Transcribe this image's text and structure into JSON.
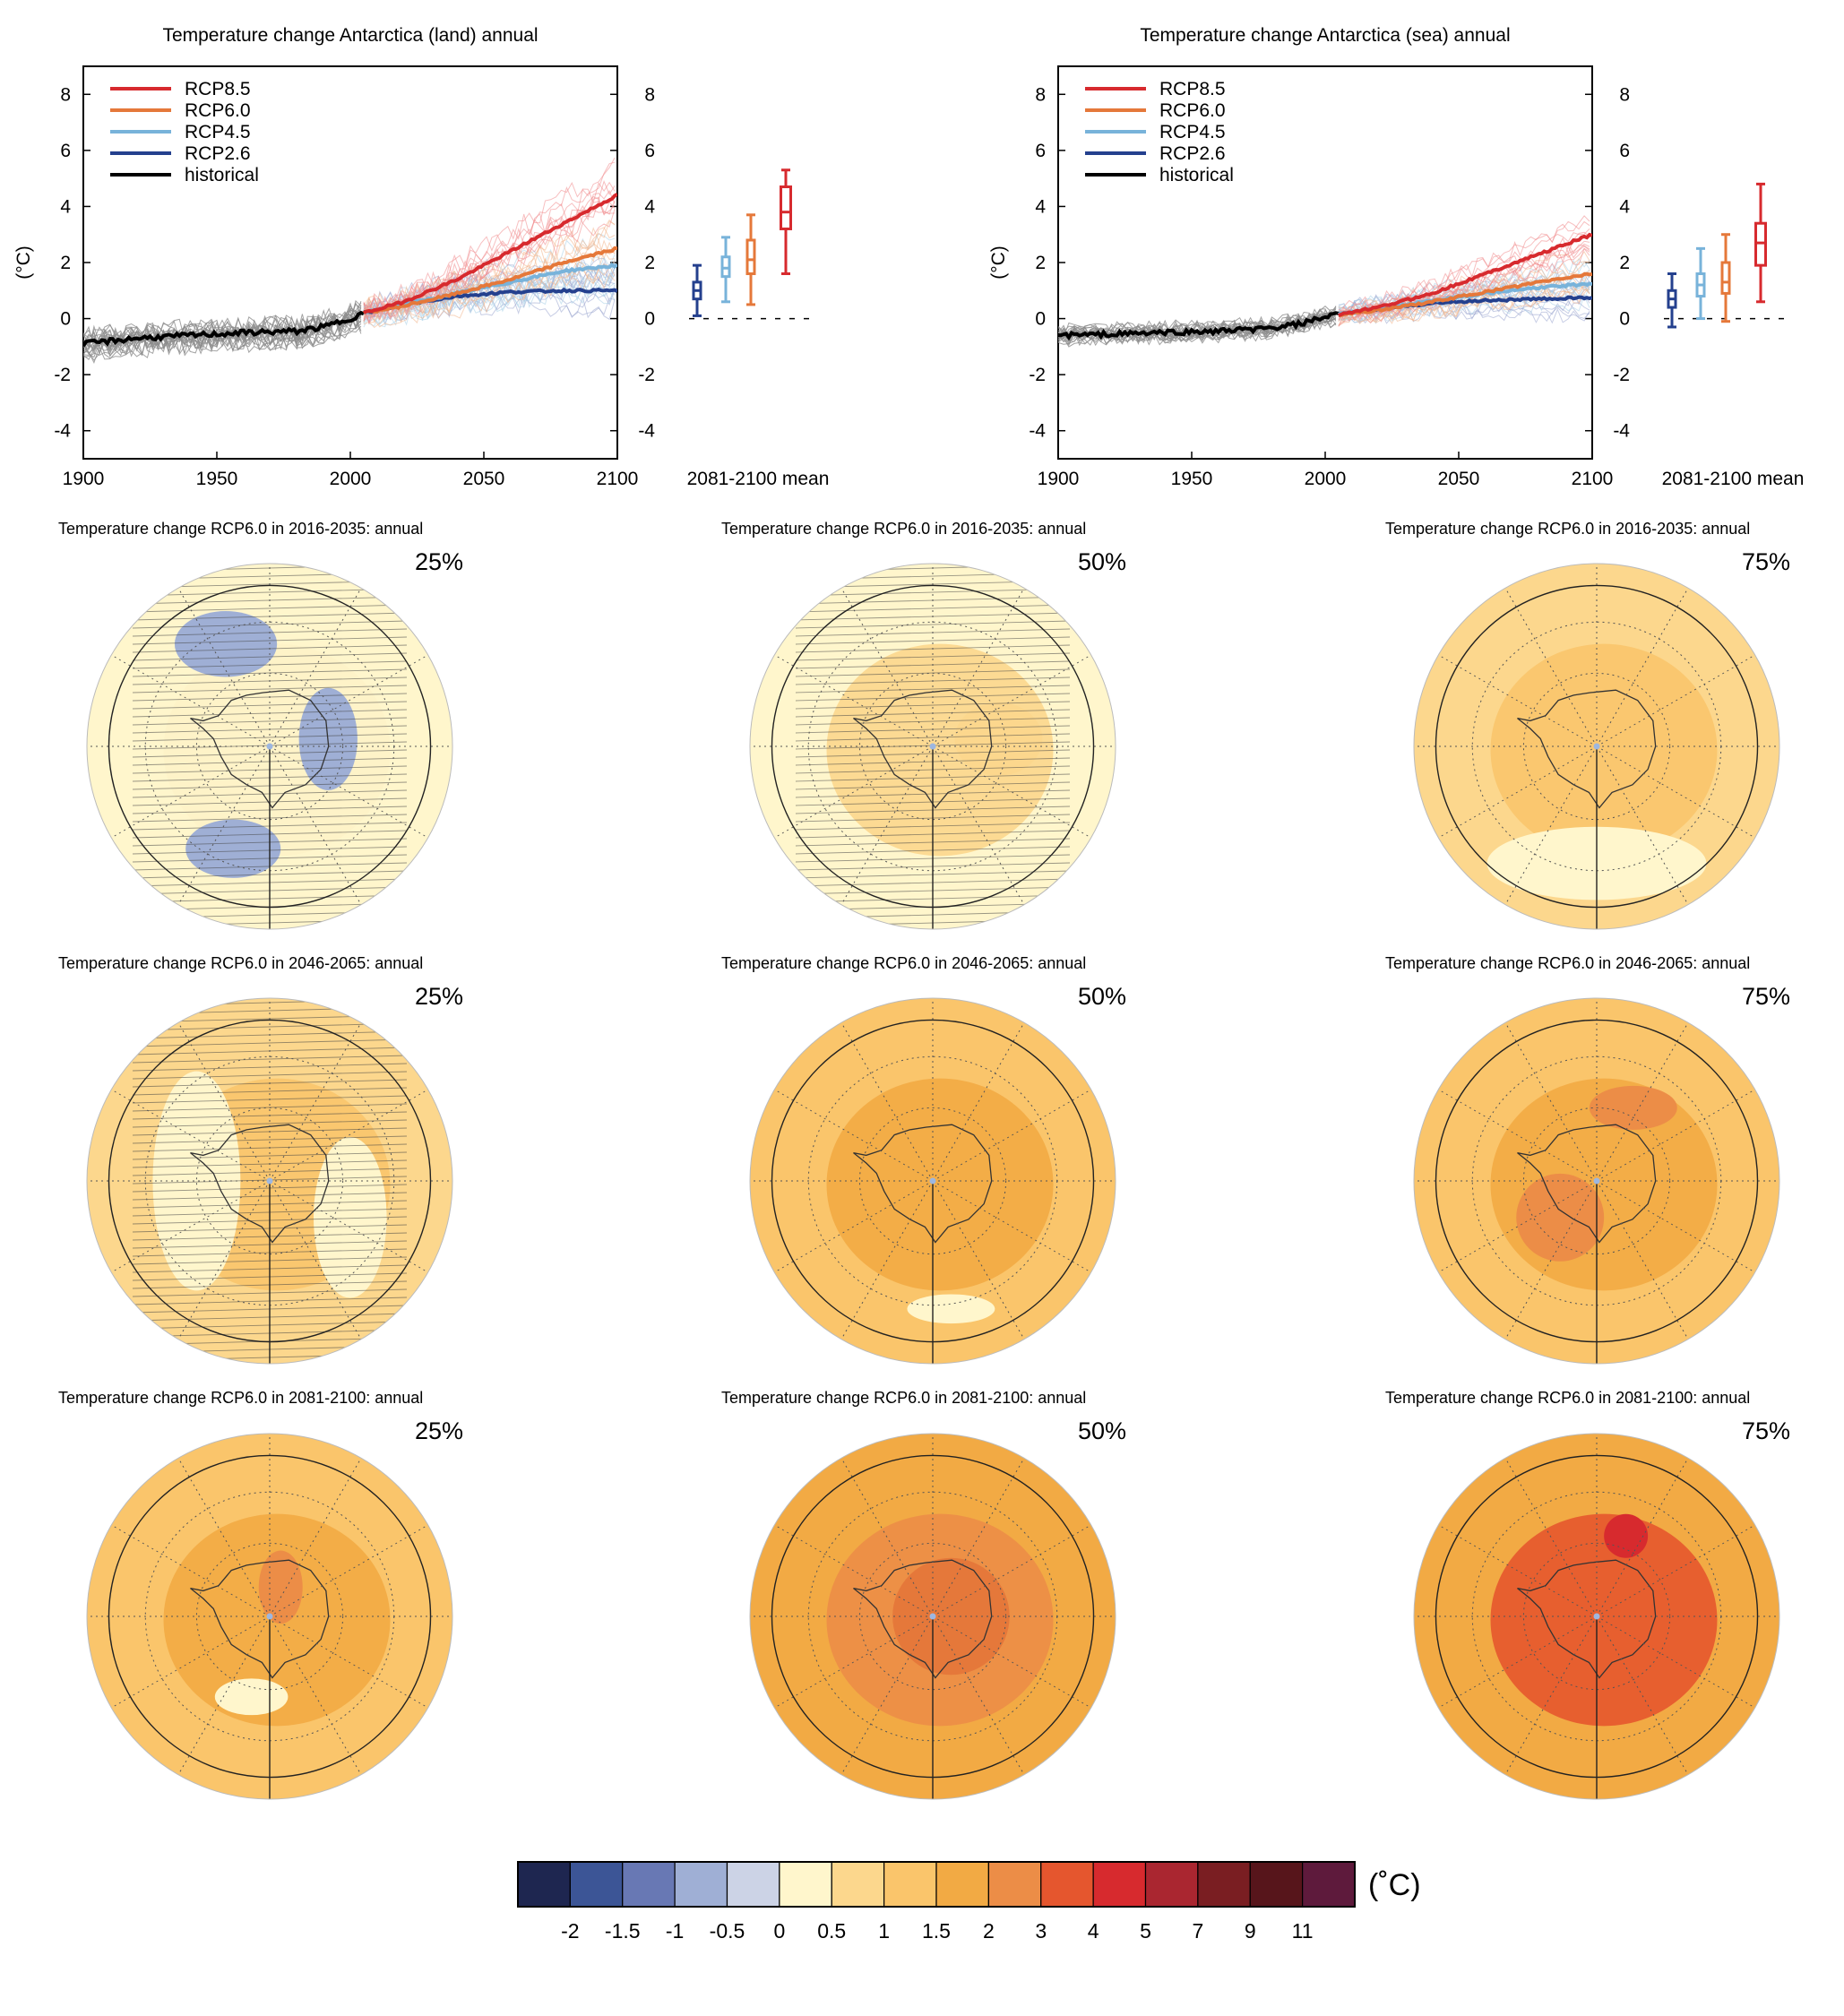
{
  "chart_data": [
    {
      "type": "line",
      "title": "Temperature change Antarctica (land) annual",
      "ylabel": "(°C)",
      "xlim": [
        1900,
        2100
      ],
      "ylim": [
        -5,
        9
      ],
      "x_ticks": [
        "1900",
        "1950",
        "2000",
        "2050",
        "2100"
      ],
      "y_ticks": [
        "-4",
        "-2",
        "0",
        "2",
        "4",
        "6",
        "8"
      ],
      "box_label": "2081-2100 mean",
      "legend": [
        "RCP8.5",
        "RCP6.0",
        "RCP4.5",
        "RCP2.6",
        "historical"
      ],
      "series": [
        {
          "name": "historical",
          "color": "#000000",
          "x": [
            1900,
            1920,
            1940,
            1960,
            1980,
            1990,
            2000,
            2005
          ],
          "values": [
            -0.9,
            -0.7,
            -0.6,
            -0.5,
            -0.45,
            -0.3,
            0.0,
            0.2
          ]
        },
        {
          "name": "RCP2.6",
          "color": "#24408e",
          "x": [
            2005,
            2020,
            2040,
            2060,
            2080,
            2100
          ],
          "values": [
            0.2,
            0.5,
            0.8,
            0.95,
            1.0,
            1.0
          ]
        },
        {
          "name": "RCP4.5",
          "color": "#78b3da",
          "x": [
            2005,
            2020,
            2040,
            2060,
            2080,
            2100
          ],
          "values": [
            0.2,
            0.5,
            0.9,
            1.3,
            1.7,
            1.9
          ]
        },
        {
          "name": "RCP6.0",
          "color": "#e5783a",
          "x": [
            2005,
            2020,
            2040,
            2060,
            2080,
            2100
          ],
          "values": [
            0.2,
            0.45,
            0.9,
            1.4,
            2.0,
            2.5
          ]
        },
        {
          "name": "RCP8.5",
          "color": "#d72a2e",
          "x": [
            2005,
            2020,
            2040,
            2060,
            2080,
            2100
          ],
          "values": [
            0.2,
            0.6,
            1.4,
            2.4,
            3.4,
            4.4
          ]
        }
      ],
      "boxes": [
        {
          "name": "RCP2.6",
          "min": 0.1,
          "q1": 0.7,
          "median": 1.0,
          "q3": 1.3,
          "max": 1.9
        },
        {
          "name": "RCP4.5",
          "min": 0.6,
          "q1": 1.5,
          "median": 1.8,
          "q3": 2.2,
          "max": 2.9
        },
        {
          "name": "RCP6.0",
          "min": 0.5,
          "q1": 1.6,
          "median": 2.1,
          "q3": 2.8,
          "max": 3.7
        },
        {
          "name": "RCP8.5",
          "min": 1.6,
          "q1": 3.2,
          "median": 3.8,
          "q3": 4.7,
          "max": 5.3
        }
      ]
    },
    {
      "type": "line",
      "title": "Temperature change Antarctica (sea) annual",
      "ylabel": "(°C)",
      "xlim": [
        1900,
        2100
      ],
      "ylim": [
        -5,
        9
      ],
      "x_ticks": [
        "1900",
        "1950",
        "2000",
        "2050",
        "2100"
      ],
      "y_ticks": [
        "-4",
        "-2",
        "0",
        "2",
        "4",
        "6",
        "8"
      ],
      "box_label": "2081-2100 mean",
      "legend": [
        "RCP8.5",
        "RCP6.0",
        "RCP4.5",
        "RCP2.6",
        "historical"
      ],
      "series": [
        {
          "name": "historical",
          "color": "#000000",
          "x": [
            1900,
            1920,
            1940,
            1960,
            1980,
            1990,
            2000,
            2005
          ],
          "values": [
            -0.6,
            -0.55,
            -0.5,
            -0.45,
            -0.35,
            -0.2,
            0.05,
            0.15
          ]
        },
        {
          "name": "RCP2.6",
          "color": "#24408e",
          "x": [
            2005,
            2020,
            2040,
            2060,
            2080,
            2100
          ],
          "values": [
            0.15,
            0.35,
            0.55,
            0.65,
            0.7,
            0.75
          ]
        },
        {
          "name": "RCP4.5",
          "color": "#78b3da",
          "x": [
            2005,
            2020,
            2040,
            2060,
            2080,
            2100
          ],
          "values": [
            0.15,
            0.35,
            0.65,
            0.9,
            1.1,
            1.25
          ]
        },
        {
          "name": "RCP6.0",
          "color": "#e5783a",
          "x": [
            2005,
            2020,
            2040,
            2060,
            2080,
            2100
          ],
          "values": [
            0.15,
            0.3,
            0.6,
            0.95,
            1.3,
            1.6
          ]
        },
        {
          "name": "RCP8.5",
          "color": "#d72a2e",
          "x": [
            2005,
            2020,
            2040,
            2060,
            2080,
            2100
          ],
          "values": [
            0.15,
            0.4,
            0.9,
            1.6,
            2.3,
            3.0
          ]
        }
      ],
      "boxes": [
        {
          "name": "RCP2.6",
          "min": -0.3,
          "q1": 0.4,
          "median": 0.7,
          "q3": 1.0,
          "max": 1.6
        },
        {
          "name": "RCP4.5",
          "min": 0.0,
          "q1": 0.8,
          "median": 1.2,
          "q3": 1.6,
          "max": 2.5
        },
        {
          "name": "RCP6.0",
          "min": -0.1,
          "q1": 0.9,
          "median": 1.3,
          "q3": 2.0,
          "max": 3.0
        },
        {
          "name": "RCP8.5",
          "min": 0.6,
          "q1": 1.9,
          "median": 2.7,
          "q3": 3.4,
          "max": 4.8
        }
      ]
    }
  ],
  "maps": [
    {
      "title": "Temperature change RCP6.0 in 2016-2035: annual",
      "pct": "25%",
      "bg": "#fff6cc",
      "inner": "#fef3c8",
      "blobs": [
        [
          "#9fafd5",
          0.38,
          0.22,
          0.14,
          0.09
        ],
        [
          "#9fafd5",
          0.66,
          0.48,
          0.08,
          0.14
        ],
        [
          "#9fafd5",
          0.4,
          0.78,
          0.13,
          0.08
        ]
      ],
      "hatch": true
    },
    {
      "title": "Temperature change RCP6.0 in 2016-2035: annual",
      "pct": "50%",
      "bg": "#fff6cc",
      "inner": "#fcd78d",
      "blobs": [
        [
          "#fcd78d",
          0.68,
          0.48,
          0.12,
          0.1
        ]
      ],
      "hatch": true
    },
    {
      "title": "Temperature change RCP6.0 in 2016-2035: annual",
      "pct": "75%",
      "bg": "#fcd78d",
      "inner": "#fac56b",
      "blobs": [
        [
          "#fff6cc",
          0.5,
          0.82,
          0.3,
          0.1
        ]
      ],
      "hatch": false
    },
    {
      "title": "Temperature change RCP6.0 in 2046-2065: annual",
      "pct": "25%",
      "bg": "#fcd78d",
      "inner": "#fac56b",
      "blobs": [
        [
          "#fff6cc",
          0.3,
          0.5,
          0.12,
          0.3
        ],
        [
          "#fff6cc",
          0.72,
          0.6,
          0.1,
          0.22
        ]
      ],
      "hatch": true
    },
    {
      "title": "Temperature change RCP6.0 in 2046-2065: annual",
      "pct": "50%",
      "bg": "#fac56b",
      "inner": "#f2aa44",
      "blobs": [
        [
          "#fff6cc",
          0.55,
          0.85,
          0.12,
          0.04
        ]
      ],
      "hatch": false
    },
    {
      "title": "Temperature change RCP6.0 in 2046-2065: annual",
      "pct": "75%",
      "bg": "#fac56b",
      "inner": "#f2aa44",
      "blobs": [
        [
          "#ec8d47",
          0.4,
          0.6,
          0.12,
          0.12
        ],
        [
          "#ec8d47",
          0.6,
          0.3,
          0.12,
          0.06
        ]
      ],
      "hatch": false
    },
    {
      "title": "Temperature change RCP6.0 in 2081-2100: annual",
      "pct": "25%",
      "bg": "#fac56b",
      "inner": "#f2aa44",
      "blobs": [
        [
          "#ec8d47",
          0.53,
          0.42,
          0.06,
          0.1
        ],
        [
          "#fff6cc",
          0.45,
          0.72,
          0.1,
          0.05
        ]
      ],
      "hatch": false
    },
    {
      "title": "Temperature change RCP6.0 in 2081-2100: annual",
      "pct": "50%",
      "bg": "#f2aa44",
      "inner": "#ec8d47",
      "blobs": [
        [
          "#e5783a",
          0.55,
          0.5,
          0.16,
          0.16
        ]
      ],
      "hatch": false
    },
    {
      "title": "Temperature change RCP6.0 in 2081-2100: annual",
      "pct": "75%",
      "bg": "#f2aa44",
      "inner": "#e5562e",
      "blobs": [
        [
          "#d72a2e",
          0.58,
          0.28,
          0.06,
          0.06
        ]
      ],
      "hatch": false
    }
  ],
  "colorbar": {
    "unit": "(˚C)",
    "colors": [
      "#1e2650",
      "#3c5596",
      "#6878b4",
      "#9fafd5",
      "#ccd3e6",
      "#fff6cc",
      "#fcd78d",
      "#fac56b",
      "#f2aa44",
      "#ec8d47",
      "#e5562e",
      "#d72a2e",
      "#aa2630",
      "#7a1e22",
      "#57151b",
      "#5e1a3c"
    ],
    "labels": [
      "-2",
      "-1.5",
      "-1",
      "-0.5",
      "0",
      "0.5",
      "1",
      "1.5",
      "2",
      "3",
      "4",
      "5",
      "7",
      "9",
      "11"
    ]
  }
}
